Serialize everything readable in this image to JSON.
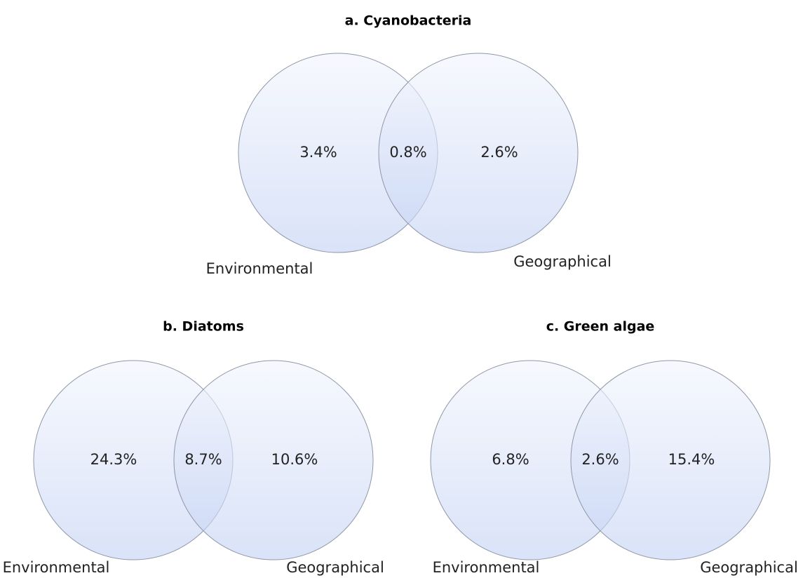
{
  "diagrams": [
    {
      "title": "a. Cyanobacteria",
      "left": {
        "label": "Environmental",
        "value": "3.4%"
      },
      "overlap": "0.8%",
      "right": {
        "label": "Geographical",
        "value": "2.6%"
      }
    },
    {
      "title": "b. Diatoms",
      "left": {
        "label": "Environmental",
        "value": "24.3%"
      },
      "overlap": "8.7%",
      "right": {
        "label": "Geographical",
        "value": "10.6%"
      }
    },
    {
      "title": "c. Green algae",
      "left": {
        "label": "Environmental",
        "value": "6.8%"
      },
      "overlap": "2.6%",
      "right": {
        "label": "Geographical",
        "value": "15.4%"
      }
    }
  ]
}
